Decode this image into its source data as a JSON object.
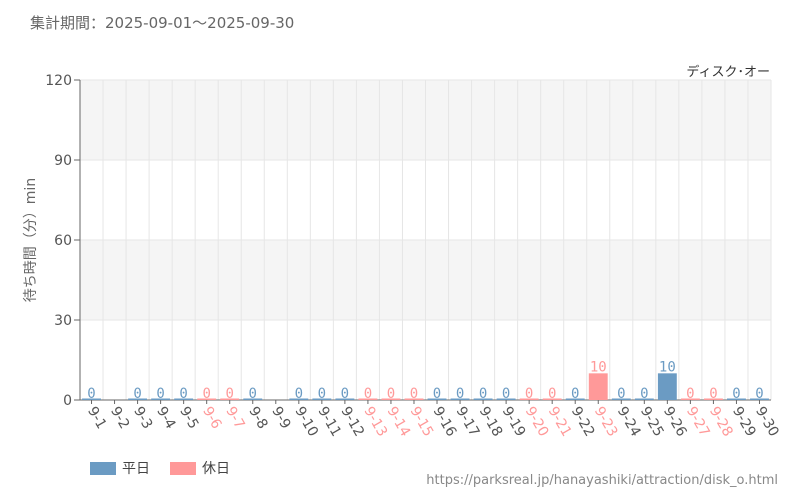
{
  "period_text": "集計期間：2025-09-01～2025-09-30",
  "footer_url": "https://parksreal.jp/hanayashiki/attraction/disk_o.html",
  "colors": {
    "weekday": "#6b9bc3",
    "holiday": "#ff9999",
    "grid": "#e6e6e6",
    "band": "#f5f5f5",
    "axis": "#666666"
  },
  "chart_data": {
    "type": "bar",
    "title": "ディスク･オー",
    "ylabel": "待ち時間（分）min",
    "xlabel": "",
    "ylim": [
      0,
      120
    ],
    "yticks": [
      0,
      30,
      60,
      90,
      120
    ],
    "grid": true,
    "legend_position": "bottom-left",
    "legend": [
      {
        "key": "weekday",
        "label": "平日"
      },
      {
        "key": "holiday",
        "label": "休日"
      }
    ],
    "categories": [
      "9-1",
      "9-2",
      "9-3",
      "9-4",
      "9-5",
      "9-6",
      "9-7",
      "9-8",
      "9-9",
      "9-10",
      "9-11",
      "9-12",
      "9-13",
      "9-14",
      "9-15",
      "9-16",
      "9-17",
      "9-18",
      "9-19",
      "9-20",
      "9-21",
      "9-22",
      "9-23",
      "9-24",
      "9-25",
      "9-26",
      "9-27",
      "9-28",
      "9-29",
      "9-30"
    ],
    "day_type": [
      "weekday",
      "weekday",
      "weekday",
      "weekday",
      "weekday",
      "holiday",
      "holiday",
      "weekday",
      "weekday",
      "weekday",
      "weekday",
      "weekday",
      "holiday",
      "holiday",
      "holiday",
      "weekday",
      "weekday",
      "weekday",
      "weekday",
      "holiday",
      "holiday",
      "weekday",
      "holiday",
      "weekday",
      "weekday",
      "weekday",
      "holiday",
      "holiday",
      "weekday",
      "weekday"
    ],
    "values": [
      0,
      null,
      0,
      0,
      0,
      0,
      0,
      0,
      null,
      0,
      0,
      0,
      0,
      0,
      0,
      0,
      0,
      0,
      0,
      0,
      0,
      0,
      10,
      0,
      0,
      10,
      0,
      0,
      0,
      0
    ]
  }
}
